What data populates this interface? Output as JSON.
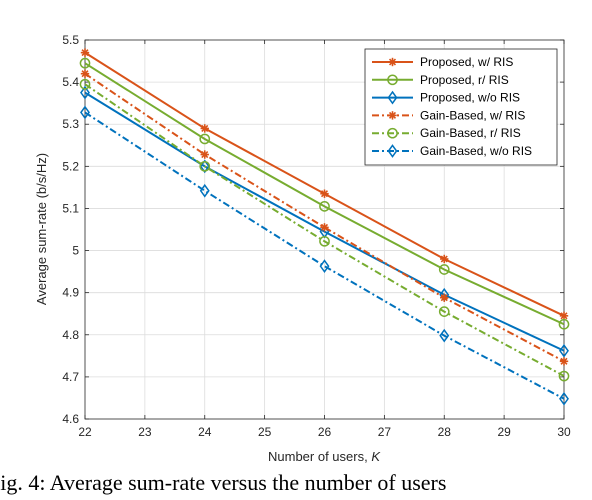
{
  "chart_data": {
    "type": "line",
    "title": "",
    "xlabel": "Number of users, ",
    "xlabel_var": "K",
    "ylabel": "Average sum-rate (b/s/Hz)",
    "xlim": [
      22,
      30
    ],
    "ylim": [
      4.6,
      5.5
    ],
    "grid": true,
    "legend_position": "top-right",
    "x_ticks": [
      "22",
      "23",
      "24",
      "25",
      "26",
      "27",
      "28",
      "29",
      "30"
    ],
    "y_ticks": [
      "4.6",
      "4.7",
      "4.8",
      "4.9",
      "5",
      "5.1",
      "5.2",
      "5.3",
      "5.4",
      "5.5"
    ],
    "x": [
      22,
      24,
      26,
      28,
      30
    ],
    "series": [
      {
        "name": "Proposed, w/ RIS",
        "color": "#D95319",
        "dash": "solid",
        "marker": "star",
        "values": [
          5.47,
          5.29,
          5.135,
          4.98,
          4.845
        ]
      },
      {
        "name": "Proposed, r/ RIS",
        "color": "#77AC30",
        "dash": "solid",
        "marker": "circle",
        "values": [
          5.445,
          5.265,
          5.105,
          4.955,
          4.825
        ]
      },
      {
        "name": "Proposed, w/o RIS",
        "color": "#0072BD",
        "dash": "solid",
        "marker": "diamond",
        "values": [
          5.375,
          5.2,
          5.045,
          4.895,
          4.762
        ]
      },
      {
        "name": "Gain-Based, w/ RIS",
        "color": "#D95319",
        "dash": "dashdot",
        "marker": "star",
        "values": [
          5.42,
          5.228,
          5.055,
          4.888,
          4.737
        ]
      },
      {
        "name": "Gain-Based, r/ RIS",
        "color": "#77AC30",
        "dash": "dashdot",
        "marker": "circle",
        "values": [
          5.395,
          5.2,
          5.022,
          4.855,
          4.702
        ]
      },
      {
        "name": "Gain-Based, w/o RIS",
        "color": "#0072BD",
        "dash": "dashdot",
        "marker": "diamond",
        "values": [
          5.328,
          5.142,
          4.963,
          4.798,
          4.648
        ]
      }
    ]
  },
  "caption": "Fig. 4: Average sum-rate versus the number of users"
}
